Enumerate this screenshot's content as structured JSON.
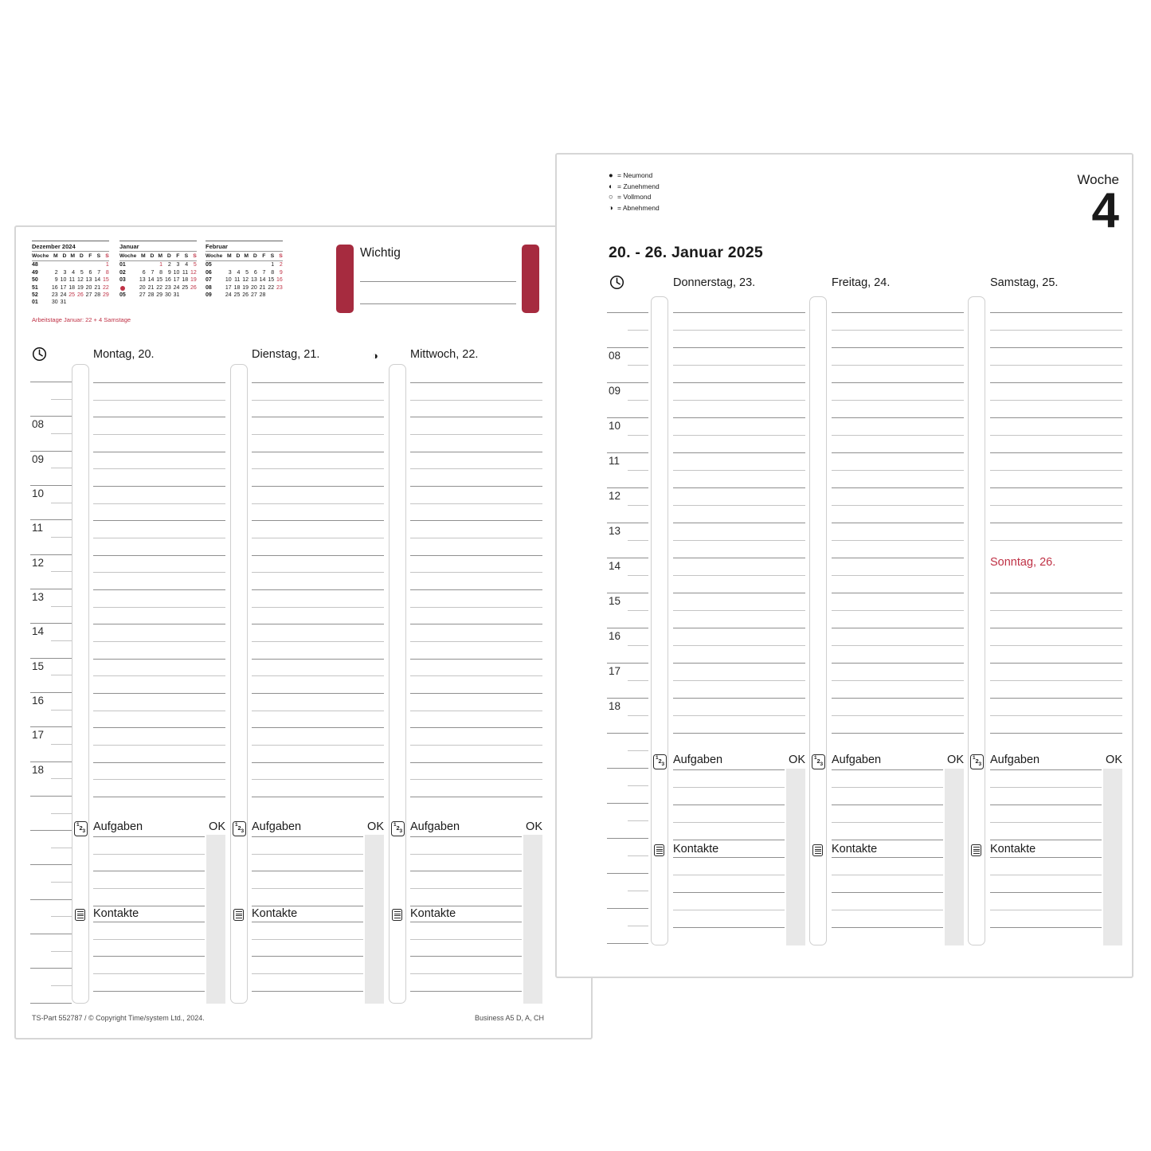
{
  "colors": {
    "red_bar": "#a62b3f",
    "red_text": "#bf3145",
    "line_dark": "#8f8f8f",
    "line_light": "#c4c4c4",
    "gray_bar": "#e8e8e8"
  },
  "hours": [
    "08",
    "09",
    "10",
    "11",
    "12",
    "13",
    "14",
    "15",
    "16",
    "17",
    "18"
  ],
  "labels": {
    "aufgaben": "Aufgaben",
    "ok": "OK",
    "kontakte": "Kontakte"
  },
  "icons": {
    "clock": "clock-icon",
    "tasks_digits": "123",
    "contacts": "contacts-list-icon"
  },
  "left_page": {
    "mini_cal_week_header": "Woche",
    "mini_cal_day_letters": [
      "M",
      "D",
      "M",
      "D",
      "F",
      "S",
      "S"
    ],
    "mini_calendars": [
      {
        "title": "Dezember 2024",
        "rows": [
          {
            "week": "48",
            "dot": false,
            "days": [
              "",
              "",
              "",
              "",
              "",
              "",
              "1"
            ],
            "red": [
              6
            ]
          },
          {
            "week": "49",
            "dot": false,
            "days": [
              "2",
              "3",
              "4",
              "5",
              "6",
              "7",
              "8"
            ],
            "red": [
              6
            ]
          },
          {
            "week": "50",
            "dot": false,
            "days": [
              "9",
              "10",
              "11",
              "12",
              "13",
              "14",
              "15"
            ],
            "red": [
              6
            ]
          },
          {
            "week": "51",
            "dot": false,
            "days": [
              "16",
              "17",
              "18",
              "19",
              "20",
              "21",
              "22"
            ],
            "red": [
              6
            ]
          },
          {
            "week": "52",
            "dot": false,
            "days": [
              "23",
              "24",
              "25",
              "26",
              "27",
              "28",
              "29"
            ],
            "red": [
              2,
              3,
              6
            ]
          },
          {
            "week": "01",
            "dot": false,
            "days": [
              "30",
              "31",
              "",
              "",
              "",
              "",
              ""
            ],
            "red": []
          }
        ]
      },
      {
        "title": "Januar",
        "rows": [
          {
            "week": "01",
            "dot": false,
            "days": [
              "",
              "",
              "1",
              "2",
              "3",
              "4",
              "5"
            ],
            "red": [
              2,
              6
            ]
          },
          {
            "week": "02",
            "dot": false,
            "days": [
              "6",
              "7",
              "8",
              "9",
              "10",
              "11",
              "12"
            ],
            "red": [
              6
            ]
          },
          {
            "week": "03",
            "dot": false,
            "days": [
              "13",
              "14",
              "15",
              "16",
              "17",
              "18",
              "19"
            ],
            "red": [
              6
            ]
          },
          {
            "week": "",
            "dot": true,
            "days": [
              "20",
              "21",
              "22",
              "23",
              "24",
              "25",
              "26"
            ],
            "red": [
              6
            ]
          },
          {
            "week": "05",
            "dot": false,
            "days": [
              "27",
              "28",
              "29",
              "30",
              "31",
              "",
              ""
            ],
            "red": []
          }
        ]
      },
      {
        "title": "Februar",
        "rows": [
          {
            "week": "05",
            "dot": false,
            "days": [
              "",
              "",
              "",
              "",
              "",
              "1",
              "2"
            ],
            "red": [
              6
            ]
          },
          {
            "week": "06",
            "dot": false,
            "days": [
              "3",
              "4",
              "5",
              "6",
              "7",
              "8",
              "9"
            ],
            "red": [
              6
            ]
          },
          {
            "week": "07",
            "dot": false,
            "days": [
              "10",
              "11",
              "12",
              "13",
              "14",
              "15",
              "16"
            ],
            "red": [
              6
            ]
          },
          {
            "week": "08",
            "dot": false,
            "days": [
              "17",
              "18",
              "19",
              "20",
              "21",
              "22",
              "23"
            ],
            "red": [
              6
            ]
          },
          {
            "week": "09",
            "dot": false,
            "days": [
              "24",
              "25",
              "26",
              "27",
              "28",
              "",
              ""
            ],
            "red": []
          }
        ]
      }
    ],
    "workdays_note": "Arbeitstage Januar: 22 + 4 Samstage",
    "wichtig_label": "Wichtig",
    "days": [
      {
        "name": "Montag, 20.",
        "moon": ""
      },
      {
        "name": "Dienstag, 21.",
        "moon": ""
      },
      {
        "name": "Mittwoch, 22.",
        "moon": "◑"
      }
    ],
    "footer_left": "TS-Part 552787 / © Copyright Time/system Ltd., 2024.",
    "footer_right": "Business A5 D, A, CH"
  },
  "right_page": {
    "moon_legend": [
      {
        "symbol": "●",
        "label": "= Neumond"
      },
      {
        "symbol": "◐",
        "label": "= Zunehmend"
      },
      {
        "symbol": "○",
        "label": "= Vollmond"
      },
      {
        "symbol": "◑",
        "label": "= Abnehmend"
      }
    ],
    "week_label": "Woche",
    "week_number": "4",
    "date_range": "20. - 26. Januar 2025",
    "days": [
      {
        "name": "Donnerstag, 23.",
        "moon": ""
      },
      {
        "name": "Freitag, 24.",
        "moon": ""
      },
      {
        "name": "Samstag, 25.",
        "moon": "",
        "sunday_label": "Sonntag, 26."
      }
    ]
  }
}
